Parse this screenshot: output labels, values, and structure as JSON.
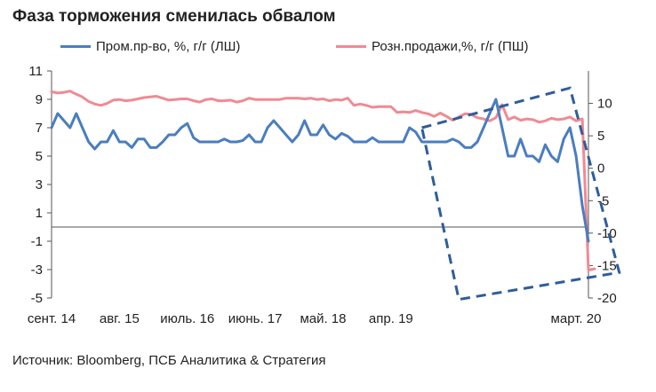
{
  "title": "Фаза торможения сменилась обвалом",
  "source": "Источник: Bloomberg, ПСБ Аналитика & Стратегия",
  "colors": {
    "industrial": "#4a7ebf",
    "retail": "#f08a93",
    "annotation": "#2f5d9a",
    "axis": "#555555"
  },
  "chart_data": {
    "type": "line",
    "x_start": "2014-09",
    "x_end": "2020-03",
    "x_tick_labels": [
      "сент. 14",
      "авг. 15",
      "июль. 16",
      "июнь. 17",
      "май. 18",
      "апр. 19",
      "март. 20"
    ],
    "left_axis": {
      "min": -5,
      "max": 11,
      "ticks": [
        -5,
        -3,
        -1,
        1,
        3,
        5,
        7,
        9,
        11
      ],
      "label": "ЛШ"
    },
    "right_axis": {
      "min": -20,
      "max": 15,
      "ticks": [
        -20,
        -15,
        -10,
        -5,
        0,
        5,
        10
      ],
      "label": "ПШ"
    },
    "series": [
      {
        "name": "Пром.пр-во, %, г/г (ЛШ)",
        "axis": "left",
        "values": [
          7.0,
          8.0,
          7.5,
          7.0,
          8.0,
          7.0,
          6.0,
          5.5,
          6.0,
          6.0,
          6.8,
          6.0,
          6.0,
          5.6,
          6.2,
          6.2,
          5.6,
          5.6,
          6.0,
          6.5,
          6.5,
          7.0,
          7.3,
          6.3,
          6.0,
          6.0,
          6.0,
          6.0,
          6.2,
          6.0,
          6.0,
          6.1,
          6.5,
          6.0,
          6.0,
          7.0,
          7.5,
          7.0,
          6.5,
          6.0,
          6.5,
          7.5,
          6.5,
          6.5,
          7.2,
          6.5,
          6.2,
          6.6,
          6.4,
          6.0,
          6.0,
          6.0,
          6.3,
          6.0,
          6.0,
          6.0,
          6.0,
          6.0,
          7.0,
          6.7,
          6.0,
          6.0,
          6.0,
          6.0,
          6.0,
          6.2,
          6.0,
          5.6,
          5.6,
          6.0,
          7.0,
          8.0,
          9.0,
          7.0,
          5.0,
          5.0,
          6.2,
          5.0,
          5.0,
          4.6,
          5.8,
          5.0,
          4.6,
          6.2,
          7.0,
          5.0,
          1.5,
          -1.0
        ]
      },
      {
        "name": "Розн.продажи,%, г/г (ПШ)",
        "axis": "right",
        "values": [
          11.8,
          11.6,
          11.7,
          11.9,
          11.4,
          11.0,
          10.3,
          9.9,
          9.7,
          10.0,
          10.5,
          10.6,
          10.4,
          10.5,
          10.7,
          10.9,
          11.0,
          11.1,
          10.8,
          10.5,
          10.6,
          10.7,
          10.7,
          10.4,
          10.2,
          10.6,
          10.7,
          10.4,
          10.4,
          10.5,
          10.2,
          10.4,
          10.8,
          10.6,
          10.6,
          10.6,
          10.6,
          10.6,
          10.8,
          10.8,
          10.8,
          10.7,
          10.8,
          10.6,
          10.7,
          10.4,
          10.6,
          10.5,
          10.8,
          9.7,
          9.9,
          9.7,
          9.4,
          9.5,
          9.5,
          9.5,
          8.6,
          8.7,
          8.6,
          8.9,
          8.6,
          8.4,
          8.0,
          8.5,
          8.0,
          7.4,
          7.9,
          8.4,
          8.3,
          7.8,
          7.6,
          7.3,
          7.8,
          9.8,
          7.5,
          7.9,
          7.4,
          7.6,
          7.5,
          7.1,
          7.3,
          7.7,
          7.5,
          7.6,
          7.9,
          7.3,
          7.6,
          -15.7,
          -15.5
        ]
      }
    ],
    "annotation": {
      "type": "dashed-rotated-rectangle",
      "corners_x_index": [
        60,
        84,
        92,
        66
      ],
      "corners_left_value": [
        7.0,
        9.8,
        -3.2,
        -5.1
      ]
    }
  }
}
